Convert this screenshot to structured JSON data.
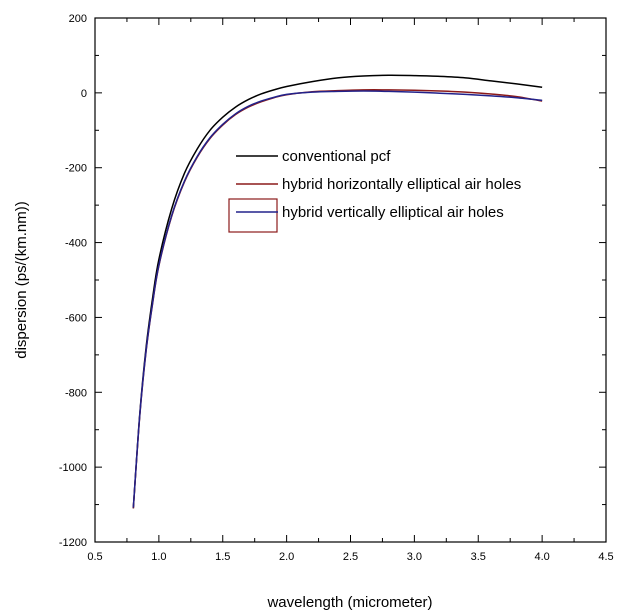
{
  "chart_data": {
    "type": "line",
    "xlabel": "wavelength (micrometer)",
    "ylabel": "dispersion (ps/(km.nm))",
    "xlim": [
      0.5,
      4.5
    ],
    "ylim": [
      -1200,
      200
    ],
    "xticks": [
      "0.5",
      "1.0",
      "1.5",
      "2.0",
      "2.5",
      "3.0",
      "3.5",
      "4.0",
      "4.5"
    ],
    "yticks": [
      "200",
      "0",
      "-200",
      "-400",
      "-600",
      "-800",
      "-1000",
      "-1200"
    ],
    "grid": false,
    "legend_position": "center",
    "series": [
      {
        "name": "conventional pcf",
        "color": "#000000",
        "x": [
          0.8,
          0.85,
          0.9,
          0.95,
          1.0,
          1.1,
          1.2,
          1.3,
          1.4,
          1.5,
          1.6,
          1.7,
          1.8,
          1.9,
          2.0,
          2.2,
          2.4,
          2.6,
          2.8,
          3.0,
          3.2,
          3.4,
          3.6,
          3.8,
          4.0
        ],
        "y": [
          -1110,
          -860,
          -680,
          -550,
          -445,
          -310,
          -215,
          -150,
          -100,
          -65,
          -38,
          -18,
          -3,
          8,
          17,
          30,
          40,
          45,
          47,
          46,
          44,
          40,
          32,
          24,
          15
        ]
      },
      {
        "name": "hybrid horizontally elliptical air holes",
        "color": "#8b1a1a",
        "x": [
          0.8,
          0.85,
          0.9,
          0.95,
          1.0,
          1.1,
          1.2,
          1.3,
          1.4,
          1.5,
          1.6,
          1.7,
          1.8,
          1.9,
          2.0,
          2.2,
          2.4,
          2.6,
          2.8,
          3.0,
          3.2,
          3.4,
          3.6,
          3.8,
          4.0
        ],
        "y": [
          -1110,
          -865,
          -690,
          -565,
          -462,
          -330,
          -238,
          -172,
          -122,
          -86,
          -58,
          -38,
          -24,
          -13,
          -5,
          3,
          6,
          8,
          8,
          7,
          5,
          2,
          -3,
          -10,
          -22
        ]
      },
      {
        "name": "hybrid vertically elliptical air holes",
        "color": "#22228b",
        "x": [
          0.8,
          0.85,
          0.9,
          0.95,
          1.0,
          1.1,
          1.2,
          1.3,
          1.4,
          1.5,
          1.6,
          1.7,
          1.8,
          1.9,
          2.0,
          2.2,
          2.4,
          2.6,
          2.8,
          3.0,
          3.2,
          3.4,
          3.6,
          3.8,
          4.0
        ],
        "y": [
          -1108,
          -863,
          -688,
          -563,
          -460,
          -328,
          -236,
          -170,
          -120,
          -84,
          -56,
          -36,
          -22,
          -12,
          -4,
          2,
          4,
          5,
          4,
          2,
          -1,
          -4,
          -8,
          -13,
          -20
        ]
      }
    ]
  }
}
